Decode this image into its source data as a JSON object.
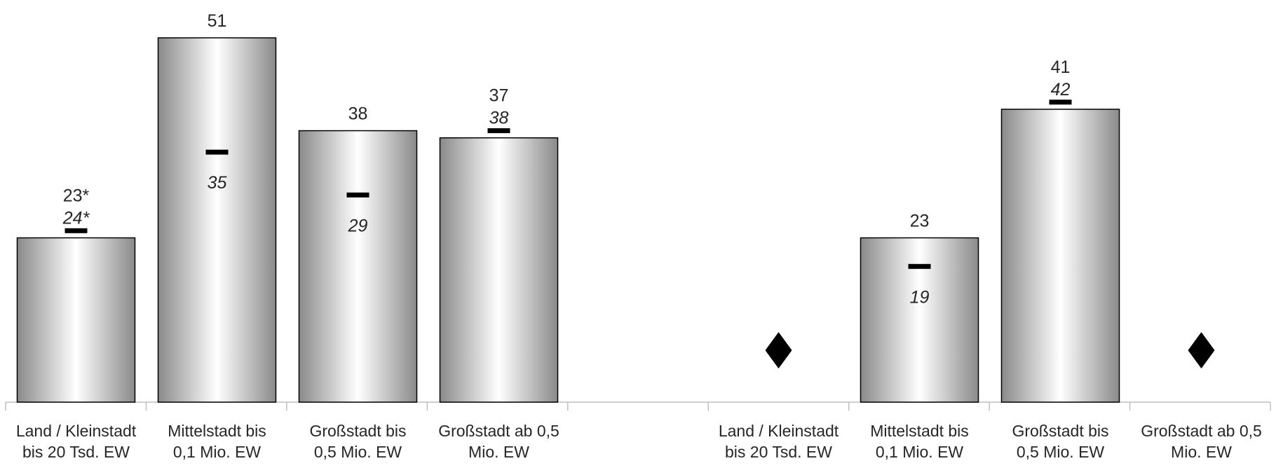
{
  "chart_data": {
    "type": "bar",
    "ylim": [
      0,
      55
    ],
    "groups": [
      {
        "categories": [
          [
            "Land / Kleinstadt",
            "bis 20 Tsd. EW"
          ],
          [
            "Mittelstadt bis",
            "0,1 Mio. EW"
          ],
          [
            "Großstadt bis",
            "0,5 Mio. EW"
          ],
          [
            "Großstadt ab 0,5",
            "Mio. EW"
          ]
        ],
        "values": [
          23,
          51,
          38,
          37
        ],
        "value_labels": [
          "23*",
          "51",
          "38",
          "37"
        ],
        "markers": [
          24,
          35,
          29,
          38
        ],
        "marker_labels": [
          "24*",
          "35",
          "29",
          "38"
        ],
        "missing": [
          false,
          false,
          false,
          false
        ]
      },
      {
        "categories": [
          [
            "Land / Kleinstadt",
            "bis 20 Tsd. EW"
          ],
          [
            "Mittelstadt bis",
            "0,1 Mio. EW"
          ],
          [
            "Großstadt bis",
            "0,5 Mio. EW"
          ],
          [
            "Großstadt ab 0,5",
            "Mio. EW"
          ]
        ],
        "values": [
          null,
          23,
          41,
          null
        ],
        "value_labels": [
          "",
          "23",
          "41",
          ""
        ],
        "markers": [
          null,
          19,
          42,
          null
        ],
        "marker_labels": [
          "",
          "19",
          "42",
          ""
        ],
        "missing": [
          true,
          false,
          false,
          true
        ]
      }
    ],
    "colors": {
      "bar_edge": "#595959",
      "bar_center": "#ffffff",
      "marker": "#000000",
      "axis": "#bfbfbf"
    }
  }
}
